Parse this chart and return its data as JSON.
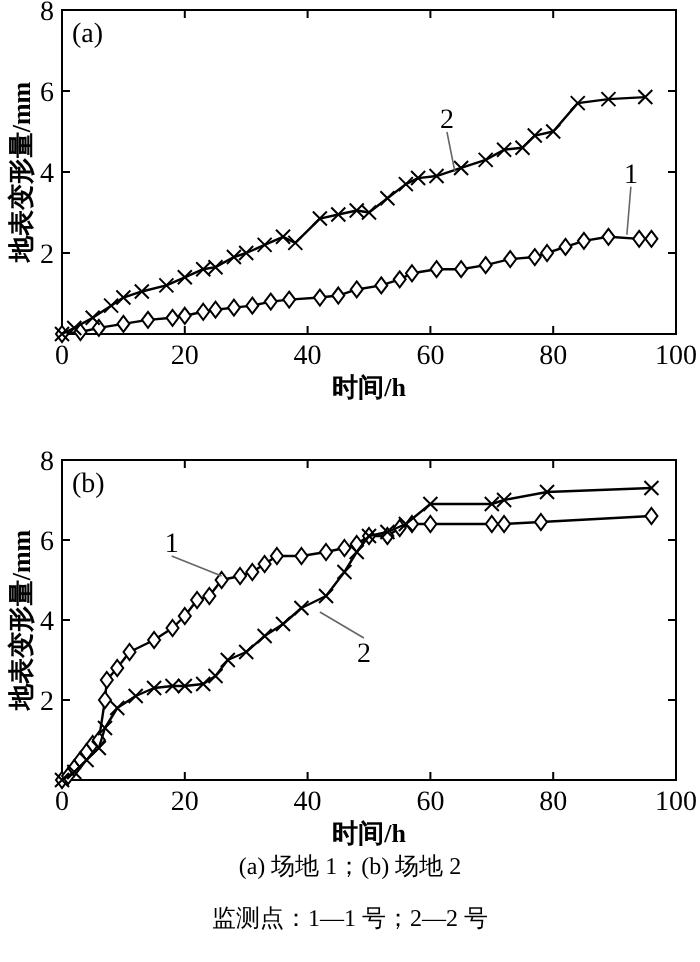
{
  "chart_data": [
    {
      "type": "line",
      "title": "(a)",
      "xlabel": "时间/h",
      "ylabel": "地表变形量/mm",
      "xlim": [
        0,
        100
      ],
      "ylim": [
        0,
        8
      ],
      "xticks": [
        0,
        20,
        40,
        60,
        80,
        100
      ],
      "yticks": [
        2,
        4,
        6,
        8
      ],
      "grid": false,
      "series": [
        {
          "color": "#000000",
          "marker": "diamond",
          "x": [
            0,
            3,
            6,
            10,
            14,
            18,
            20,
            23,
            25,
            28,
            31,
            34,
            37,
            42,
            45,
            48,
            52,
            55,
            57,
            61,
            65,
            69,
            73,
            77,
            79,
            82,
            85,
            89,
            94,
            96
          ],
          "values": [
            0,
            0.05,
            0.15,
            0.25,
            0.35,
            0.4,
            0.45,
            0.55,
            0.6,
            0.65,
            0.7,
            0.8,
            0.85,
            0.9,
            0.95,
            1.1,
            1.2,
            1.35,
            1.5,
            1.6,
            1.6,
            1.7,
            1.85,
            1.9,
            2.0,
            2.15,
            2.3,
            2.4,
            2.35,
            2.35
          ]
        },
        {
          "color": "#000000",
          "marker": "cross",
          "x": [
            0,
            2,
            5,
            8,
            10,
            13,
            17,
            20,
            23,
            25,
            28,
            30,
            33,
            36,
            38,
            42,
            45,
            48,
            50,
            53,
            56,
            58,
            61,
            65,
            69,
            72,
            75,
            77,
            80,
            84,
            89,
            95
          ],
          "values": [
            0,
            0.15,
            0.4,
            0.7,
            0.9,
            1.05,
            1.2,
            1.4,
            1.6,
            1.65,
            1.9,
            2.0,
            2.2,
            2.4,
            2.25,
            2.85,
            2.95,
            3.05,
            3.0,
            3.35,
            3.7,
            3.85,
            3.9,
            4.1,
            4.3,
            4.55,
            4.6,
            4.9,
            5.0,
            5.7,
            5.8,
            5.85
          ]
        }
      ],
      "annotations": [
        {
          "text": "1",
          "x": 92,
          "y": 2.45
        },
        {
          "text": "2",
          "x": 64,
          "y": 4.0
        }
      ]
    },
    {
      "type": "line",
      "title": "(b)",
      "xlabel": "时间/h",
      "ylabel": "地表变形量/mm",
      "xlim": [
        0,
        100
      ],
      "ylim": [
        0,
        8
      ],
      "xticks": [
        0,
        20,
        40,
        60,
        80,
        100
      ],
      "yticks": [
        2,
        4,
        6,
        8
      ],
      "grid": false,
      "series": [
        {
          "color": "#000000",
          "marker": "diamond",
          "x": [
            0,
            1,
            2,
            3,
            4,
            5,
            6,
            7,
            7.3,
            9,
            11,
            15,
            18,
            20,
            22,
            24,
            26,
            29,
            31,
            33,
            35,
            39,
            43,
            46,
            48,
            50,
            53,
            55,
            57,
            60,
            70,
            72,
            78,
            96
          ],
          "values": [
            0,
            0.1,
            0.3,
            0.5,
            0.7,
            0.9,
            1.0,
            2.0,
            2.5,
            2.8,
            3.2,
            3.5,
            3.8,
            4.1,
            4.5,
            4.6,
            5.0,
            5.1,
            5.2,
            5.4,
            5.6,
            5.6,
            5.7,
            5.8,
            5.9,
            6.1,
            6.1,
            6.3,
            6.4,
            6.4,
            6.4,
            6.4,
            6.45,
            6.6
          ]
        },
        {
          "color": "#000000",
          "marker": "cross",
          "x": [
            0,
            2,
            4,
            6,
            7,
            9,
            12,
            15,
            18,
            20,
            23,
            25,
            27,
            30,
            33,
            36,
            39,
            43,
            46,
            48,
            50,
            53,
            56,
            60,
            70,
            72,
            79,
            96
          ],
          "values": [
            0,
            0.2,
            0.5,
            0.8,
            1.3,
            1.8,
            2.1,
            2.3,
            2.35,
            2.35,
            2.4,
            2.6,
            3.0,
            3.2,
            3.6,
            3.9,
            4.3,
            4.6,
            5.2,
            5.7,
            6.1,
            6.2,
            6.4,
            6.9,
            6.9,
            7.0,
            7.2,
            7.3
          ]
        }
      ],
      "annotations": [
        {
          "text": "1",
          "x": 26,
          "y": 5.1
        },
        {
          "text": "2",
          "x": 42,
          "y": 4.2
        },
        "(a) 场地 1；(b) 场地 2",
        "监测点：1—1 号；2—2 号"
      ]
    }
  ]
}
